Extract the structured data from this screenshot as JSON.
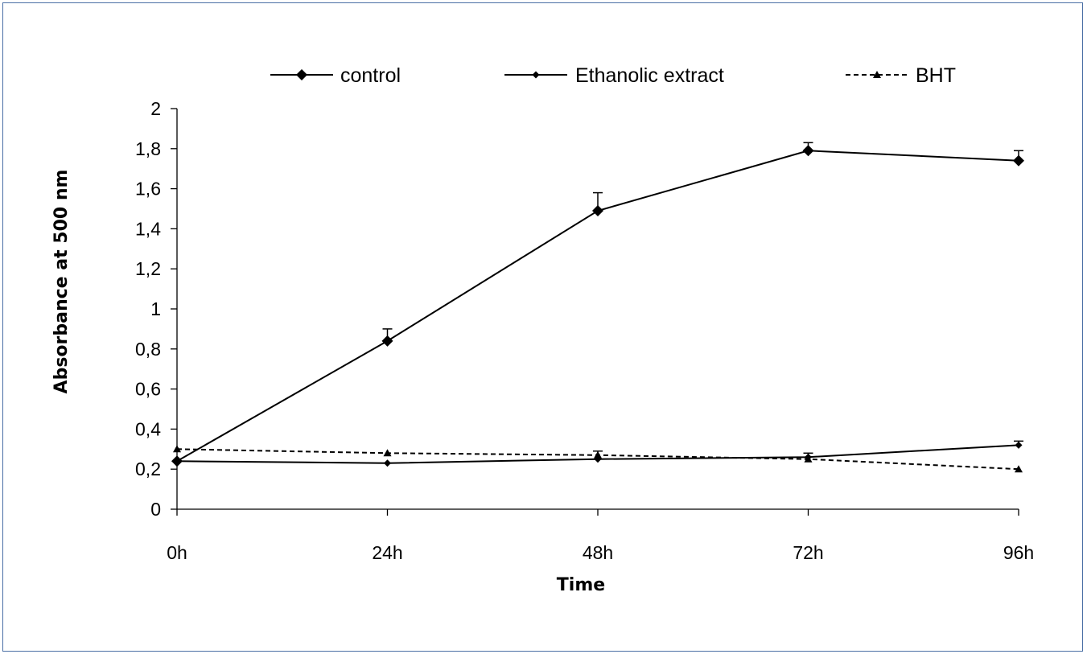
{
  "chart_data": {
    "type": "line",
    "title": "",
    "xlabel": "Time",
    "ylabel": "Absorbance at 500 nm",
    "categories": [
      "0h",
      "24h",
      "48h",
      "72h",
      "96h"
    ],
    "ylim": [
      0,
      2
    ],
    "yticks": [
      "0",
      "0,2",
      "0,4",
      "0,6",
      "0,8",
      "1",
      "1,2",
      "1,4",
      "1,6",
      "1,8",
      "2"
    ],
    "grid": false,
    "legend_position": "top",
    "series": [
      {
        "name": "control",
        "values": [
          0.24,
          0.84,
          1.49,
          1.79,
          1.74
        ],
        "error": [
          0.0,
          0.06,
          0.09,
          0.04,
          0.05
        ],
        "marker": "diamond",
        "line_style": "solid",
        "color": "#000000"
      },
      {
        "name": "Ethanolic extract",
        "values": [
          0.24,
          0.23,
          0.25,
          0.26,
          0.32
        ],
        "error": [
          0.0,
          0.0,
          0.0,
          0.02,
          0.02
        ],
        "marker": "small-diamond",
        "line_style": "solid",
        "color": "#000000"
      },
      {
        "name": "BHT",
        "values": [
          0.3,
          0.28,
          0.27,
          0.25,
          0.2
        ],
        "error": [
          0.0,
          0.0,
          0.02,
          0.0,
          0.0
        ],
        "marker": "triangle",
        "line_style": "dashed",
        "color": "#000000"
      }
    ]
  }
}
